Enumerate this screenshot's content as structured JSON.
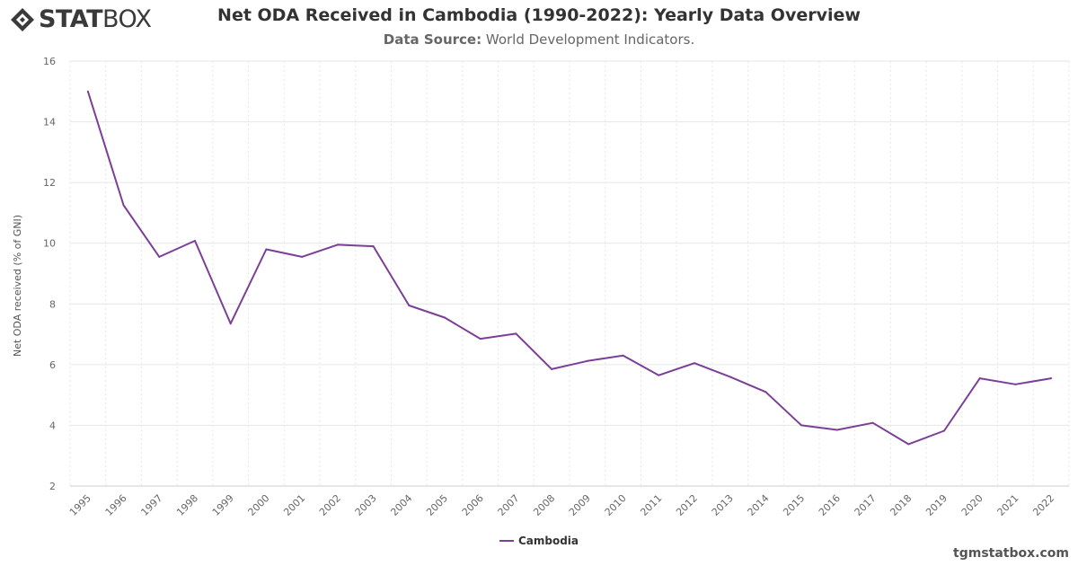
{
  "brand": {
    "logo_bold": "STAT",
    "logo_light": "BOX"
  },
  "header": {
    "title": "Net ODA Received in Cambodia (1990-2022): Yearly Data Overview",
    "source_label": "Data Source:",
    "source_value": " World Development Indicators."
  },
  "watermark": "tgmstatbox.com",
  "colors": {
    "series": "#7b3f96",
    "grid": "#e6e6e6"
  },
  "chart_data": {
    "type": "line",
    "title": "Net ODA Received in Cambodia (1990-2022): Yearly Data Overview",
    "subtitle": "Data Source: World Development Indicators.",
    "xlabel": "",
    "ylabel": "Net ODA received (% of GNI)",
    "ylim": [
      2,
      16
    ],
    "yticks": [
      2,
      4,
      6,
      8,
      10,
      12,
      14,
      16
    ],
    "grid": true,
    "legend_position": "bottom-center",
    "categories": [
      "1995",
      "1996",
      "1997",
      "1998",
      "1999",
      "2000",
      "2001",
      "2002",
      "2003",
      "2004",
      "2005",
      "2006",
      "2007",
      "2008",
      "2009",
      "2010",
      "2011",
      "2012",
      "2013",
      "2014",
      "2015",
      "2016",
      "2017",
      "2018",
      "2019",
      "2020",
      "2021",
      "2022"
    ],
    "series": [
      {
        "name": "Cambodia",
        "values": [
          15.0,
          11.25,
          9.55,
          10.08,
          7.35,
          9.8,
          9.55,
          9.95,
          9.9,
          7.95,
          7.55,
          6.85,
          7.02,
          5.85,
          6.12,
          6.3,
          5.65,
          6.05,
          5.6,
          5.1,
          4.0,
          3.85,
          4.08,
          3.38,
          3.82,
          5.55,
          5.35,
          5.55
        ]
      }
    ]
  }
}
